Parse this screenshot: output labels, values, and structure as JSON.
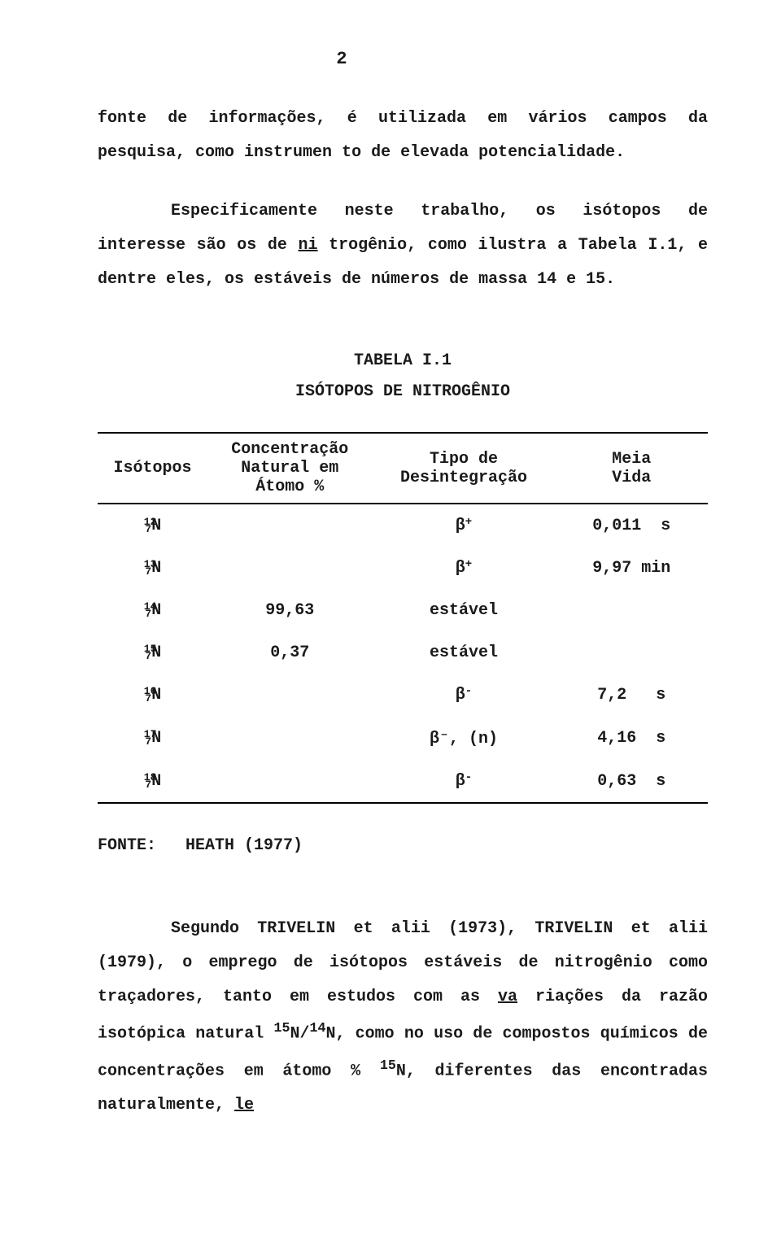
{
  "page_number": "2",
  "paragraph1": {
    "line1_a": "fonte de informações, é utilizada em vários campos da pesquisa, como instrumen",
    "line2": "to de elevada potencialidade."
  },
  "paragraph2": {
    "l1_a": "Especificamente neste trabalho, os isótopos de interesse são os de ",
    "l1_b": "ni",
    "l2": "trogênio, como ilustra a Tabela I.1, e dentre eles, os estáveis de números de massa 14 e 15."
  },
  "table": {
    "title_line1": "TABELA I.1",
    "title_line2": "ISÓTOPOS DE NITROGÊNIO",
    "headers": {
      "c1": "Isótopos",
      "c2a": "Concentração",
      "c2b": "Natural em",
      "c2c": "Átomo %",
      "c3a": "Tipo de",
      "c3b": "Desintegração",
      "c4a": "Meia",
      "c4b": "Vida"
    },
    "rows": [
      {
        "mass": "12",
        "z": "7",
        "el": "N",
        "conc": "",
        "decay": "β",
        "decay_sup": "+",
        "half": "0,011  s"
      },
      {
        "mass": "13",
        "z": "7",
        "el": "N",
        "conc": "",
        "decay": "β",
        "decay_sup": "+",
        "half": "9,97 min"
      },
      {
        "mass": "14",
        "z": "7",
        "el": "N",
        "conc": "99,63",
        "decay": "estável",
        "decay_sup": "",
        "half": ""
      },
      {
        "mass": "15",
        "z": "7",
        "el": "N",
        "conc": "0,37",
        "decay": "estável",
        "decay_sup": "",
        "half": ""
      },
      {
        "mass": "16",
        "z": "7",
        "el": "N",
        "conc": "",
        "decay": "β",
        "decay_sup": "-",
        "half": "7,2   s"
      },
      {
        "mass": "17",
        "z": "7",
        "el": "N",
        "conc": "",
        "decay": "β⁻, (n)",
        "decay_sup": "",
        "half": "4,16  s"
      },
      {
        "mass": "18",
        "z": "7",
        "el": "N",
        "conc": "",
        "decay": "β",
        "decay_sup": "-",
        "half": "0,63  s"
      }
    ],
    "fonte_label": "FONTE:",
    "fonte_value": "HEATH (1977)"
  },
  "paragraph3": {
    "l1": "Segundo TRIVELIN et alii (1973), TRIVELIN et alii (1979), o emprego",
    "l2a": "de isótopos estáveis de nitrogênio como traçadores, tanto em estudos com as ",
    "l2b": "va",
    "l3a": "riações da razão isotópica natural ",
    "l3b": "N/",
    "l3c": "N, como no uso de compostos químicos",
    "l4a": "de concentrações em átomo % ",
    "l4b": "N, diferentes das encontradas naturalmente, ",
    "l4c": "le",
    "sup15": "15",
    "sup14": "14"
  }
}
